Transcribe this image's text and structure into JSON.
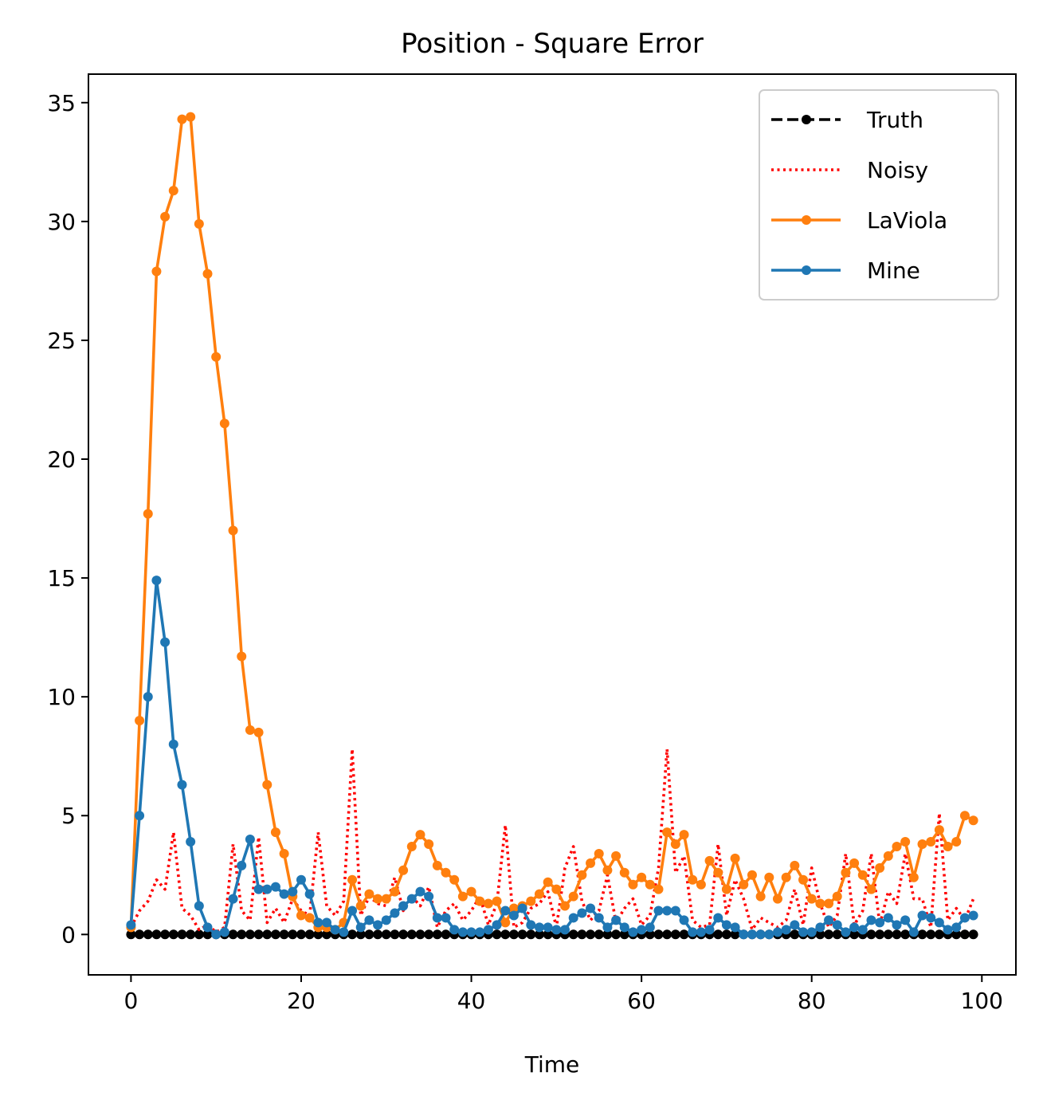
{
  "chart_data": {
    "type": "line",
    "title": "Position - Square Error",
    "xlabel": "Time",
    "ylabel": "",
    "xlim": [
      -5,
      104
    ],
    "ylim": [
      -1.7,
      36.2
    ],
    "xticks": [
      0,
      20,
      40,
      60,
      80,
      100
    ],
    "yticks": [
      0,
      5,
      10,
      15,
      20,
      25,
      30,
      35
    ],
    "grid": false,
    "legend_position": "top-right",
    "series": [
      {
        "name": "Truth",
        "color": "#000000",
        "style": "dashed",
        "marker": true,
        "values": [
          0,
          0,
          0,
          0,
          0,
          0,
          0,
          0,
          0,
          0,
          0,
          0,
          0,
          0,
          0,
          0,
          0,
          0,
          0,
          0,
          0,
          0,
          0,
          0,
          0,
          0,
          0,
          0,
          0,
          0,
          0,
          0,
          0,
          0,
          0,
          0,
          0,
          0,
          0,
          0,
          0,
          0,
          0,
          0,
          0,
          0,
          0,
          0,
          0,
          0,
          0,
          0,
          0,
          0,
          0,
          0,
          0,
          0,
          0,
          0,
          0,
          0,
          0,
          0,
          0,
          0,
          0,
          0,
          0,
          0,
          0,
          0,
          0,
          0,
          0,
          0,
          0,
          0,
          0,
          0,
          0,
          0,
          0,
          0,
          0,
          0,
          0,
          0,
          0,
          0,
          0,
          0,
          0,
          0,
          0,
          0,
          0,
          0,
          0,
          0
        ]
      },
      {
        "name": "Noisy",
        "color": "#ff0000",
        "style": "dotted",
        "marker": false,
        "values": [
          0.3,
          1.0,
          1.4,
          2.3,
          1.9,
          4.3,
          1.1,
          0.8,
          0.2,
          0.4,
          0.1,
          0.3,
          3.8,
          1.0,
          0.6,
          4.1,
          0.5,
          1.1,
          0.5,
          1.5,
          1.0,
          0.8,
          4.3,
          1.2,
          0.8,
          1.4,
          7.8,
          0.8,
          1.6,
          1.3,
          1.2,
          2.4,
          1.0,
          1.6,
          1.2,
          2.0,
          0.3,
          1.0,
          1.3,
          0.6,
          1.0,
          1.6,
          0.4,
          1.3,
          4.6,
          0.3,
          0.5,
          1.1,
          1.3,
          1.8,
          0.3,
          2.8,
          3.7,
          1.4,
          0.6,
          1.0,
          2.5,
          0.5,
          1.1,
          1.5,
          0.4,
          0.8,
          2.8,
          7.8,
          2.6,
          3.3,
          0.6,
          0.3,
          0.4,
          3.8,
          0.8,
          2.3,
          1.5,
          0.2,
          0.7,
          0.5,
          0.3,
          0.6,
          1.9,
          0.4,
          2.8,
          1.3,
          0.3,
          0.8,
          3.4,
          0.4,
          1.0,
          3.4,
          0.4,
          1.8,
          1.3,
          3.4,
          1.5,
          1.5,
          0.3,
          5.1,
          0.6,
          1.1,
          0.6,
          1.5
        ]
      },
      {
        "name": "LaViola",
        "color": "#ff7f0e",
        "style": "solid",
        "marker": true,
        "values": [
          0.3,
          9.0,
          17.7,
          27.9,
          30.2,
          31.3,
          34.3,
          34.4,
          29.9,
          27.8,
          24.3,
          21.5,
          17.0,
          11.7,
          8.6,
          8.5,
          6.3,
          4.3,
          3.4,
          1.6,
          0.8,
          0.7,
          0.3,
          0.3,
          0.2,
          0.5,
          2.3,
          1.2,
          1.7,
          1.5,
          1.5,
          1.8,
          2.7,
          3.7,
          4.2,
          3.8,
          2.9,
          2.6,
          2.3,
          1.6,
          1.8,
          1.4,
          1.3,
          1.4,
          0.5,
          1.1,
          1.2,
          1.4,
          1.7,
          2.2,
          1.9,
          1.2,
          1.6,
          2.5,
          3.0,
          3.4,
          2.7,
          3.3,
          2.6,
          2.1,
          2.4,
          2.1,
          1.9,
          4.3,
          3.8,
          4.2,
          2.3,
          2.1,
          3.1,
          2.6,
          1.9,
          3.2,
          2.1,
          2.5,
          1.6,
          2.4,
          1.5,
          2.4,
          2.9,
          2.3,
          1.5,
          1.3,
          1.3,
          1.6,
          2.6,
          3.0,
          2.5,
          1.9,
          2.8,
          3.3,
          3.7,
          3.9,
          2.4,
          3.8,
          3.9,
          4.4,
          3.7,
          3.9,
          5.0,
          4.8
        ]
      },
      {
        "name": "Mine",
        "color": "#1f77b4",
        "style": "solid",
        "marker": true,
        "values": [
          0.4,
          5.0,
          10.0,
          14.9,
          12.3,
          8.0,
          6.3,
          3.9,
          1.2,
          0.3,
          0.0,
          0.1,
          1.5,
          2.9,
          4.0,
          1.9,
          1.9,
          2.0,
          1.7,
          1.8,
          2.3,
          1.7,
          0.5,
          0.5,
          0.2,
          0.1,
          1.0,
          0.3,
          0.6,
          0.4,
          0.6,
          0.9,
          1.2,
          1.5,
          1.8,
          1.6,
          0.7,
          0.7,
          0.2,
          0.1,
          0.1,
          0.1,
          0.2,
          0.4,
          1.0,
          0.8,
          1.1,
          0.4,
          0.3,
          0.3,
          0.2,
          0.2,
          0.7,
          0.9,
          1.1,
          0.7,
          0.3,
          0.6,
          0.3,
          0.1,
          0.2,
          0.3,
          1.0,
          1.0,
          1.0,
          0.6,
          0.1,
          0.1,
          0.2,
          0.7,
          0.4,
          0.3,
          0.0,
          0.0,
          0.0,
          0.0,
          0.1,
          0.2,
          0.4,
          0.1,
          0.1,
          0.3,
          0.6,
          0.4,
          0.1,
          0.3,
          0.2,
          0.6,
          0.5,
          0.7,
          0.4,
          0.6,
          0.1,
          0.8,
          0.7,
          0.5,
          0.2,
          0.3,
          0.7,
          0.8
        ]
      }
    ]
  }
}
